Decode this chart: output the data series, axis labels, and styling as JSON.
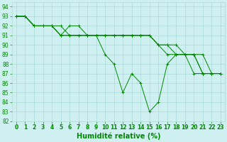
{
  "xlabel": "Humidité relative (%)",
  "bg_color": "#cff0f0",
  "grid_color": "#aadada",
  "line_color": "#008800",
  "marker": "+",
  "xlim": [
    -0.5,
    23.5
  ],
  "ylim": [
    82,
    94.5
  ],
  "yticks": [
    82,
    83,
    84,
    85,
    86,
    87,
    88,
    89,
    90,
    91,
    92,
    93,
    94
  ],
  "xticks": [
    0,
    1,
    2,
    3,
    4,
    5,
    6,
    7,
    8,
    9,
    10,
    11,
    12,
    13,
    14,
    15,
    16,
    17,
    18,
    19,
    20,
    21,
    22,
    23
  ],
  "series": [
    [
      93,
      93,
      92,
      92,
      92,
      91,
      92,
      92,
      91,
      91,
      89,
      88,
      85,
      87,
      86,
      83,
      84,
      88,
      89,
      89,
      87,
      87,
      87,
      87
    ],
    [
      93,
      93,
      92,
      92,
      92,
      92,
      91,
      91,
      91,
      91,
      91,
      91,
      91,
      91,
      91,
      91,
      90,
      90,
      90,
      89,
      89,
      89,
      87,
      87
    ],
    [
      93,
      93,
      92,
      92,
      92,
      91,
      91,
      91,
      91,
      91,
      91,
      91,
      91,
      91,
      91,
      91,
      90,
      90,
      89,
      89,
      89,
      87,
      87,
      87
    ],
    [
      93,
      93,
      92,
      92,
      92,
      91,
      91,
      91,
      91,
      91,
      91,
      91,
      91,
      91,
      91,
      91,
      90,
      89,
      89,
      89,
      89,
      87,
      87,
      87
    ]
  ],
  "tick_color": "#008800",
  "xlabel_fontsize": 7,
  "tick_fontsize": 5.5
}
